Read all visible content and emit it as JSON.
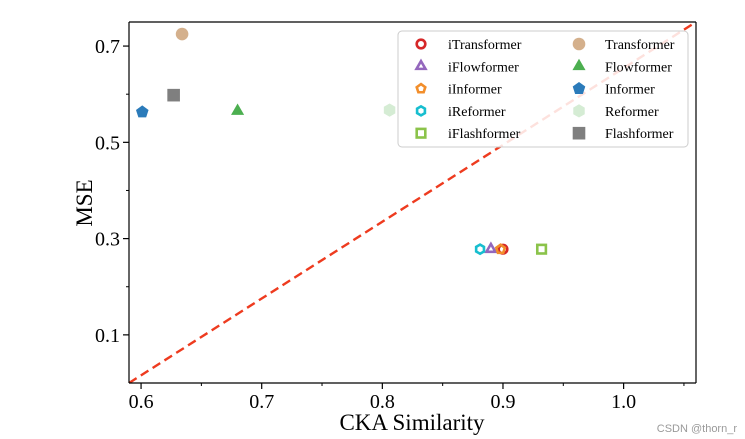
{
  "chart_data": {
    "type": "scatter",
    "title": "",
    "xlabel": "CKA Similarity",
    "ylabel": "MSE",
    "xlim": [
      0.59,
      1.06
    ],
    "ylim": [
      0.0,
      0.75
    ],
    "xticks": [
      0.6,
      0.7,
      0.8,
      0.9,
      1.0
    ],
    "yticks": [
      0.1,
      0.3,
      0.5,
      0.7
    ],
    "grid": false,
    "legend_position": "top-right",
    "reference_line": {
      "style": "dashed",
      "color": "#ee3b1f",
      "from": [
        0.59,
        0.0
      ],
      "to": [
        1.06,
        0.75
      ]
    },
    "series": [
      {
        "name": "iTransformer",
        "x": 0.9,
        "y": 0.278,
        "marker": "circle-open",
        "color": "#d62728"
      },
      {
        "name": "iFlowformer",
        "x": 0.89,
        "y": 0.278,
        "marker": "triangle-open",
        "color": "#9467bd"
      },
      {
        "name": "iInformer",
        "x": 0.898,
        "y": 0.278,
        "marker": "pentagon-open",
        "color": "#f28e2b"
      },
      {
        "name": "iReformer",
        "x": 0.881,
        "y": 0.278,
        "marker": "hexagon-open",
        "color": "#17becf"
      },
      {
        "name": "iFlashformer",
        "x": 0.932,
        "y": 0.278,
        "marker": "square-open",
        "color": "#8bc34a"
      },
      {
        "name": "Transformer",
        "x": 0.634,
        "y": 0.725,
        "marker": "circle",
        "color": "#d4b08c"
      },
      {
        "name": "Flowformer",
        "x": 0.68,
        "y": 0.565,
        "marker": "triangle",
        "color": "#4caf50"
      },
      {
        "name": "Informer",
        "x": 0.601,
        "y": 0.563,
        "marker": "pentagon",
        "color": "#2b7bba"
      },
      {
        "name": "Reformer",
        "x": 0.806,
        "y": 0.567,
        "marker": "hexagon",
        "color": "#d5ecd4"
      },
      {
        "name": "Flashformer",
        "x": 0.627,
        "y": 0.598,
        "marker": "square",
        "color": "#7f7f7f"
      }
    ]
  },
  "watermark": "CSDN @thorn_r"
}
